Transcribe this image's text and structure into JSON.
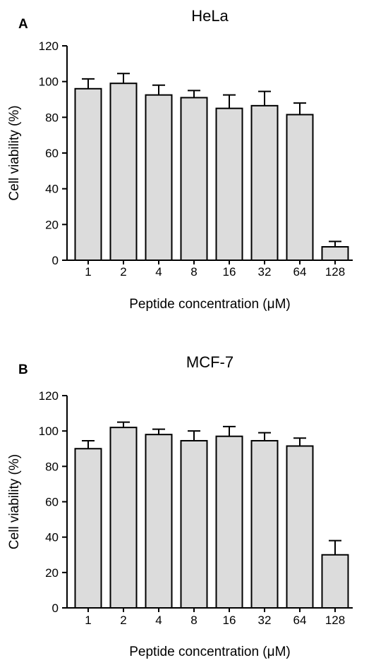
{
  "chart_data": [
    {
      "type": "bar",
      "panel_label": "A",
      "title": "HeLa",
      "xlabel": "Peptide concentration (μM)",
      "ylabel": "Cell viability (%)",
      "categories": [
        "1",
        "2",
        "4",
        "8",
        "16",
        "32",
        "64",
        "128"
      ],
      "values": [
        96,
        99,
        92.5,
        91,
        85,
        86.5,
        81.5,
        7.5
      ],
      "errors": [
        5.5,
        5.5,
        5.5,
        4,
        7.5,
        8,
        6.5,
        3
      ],
      "ylim": [
        0,
        120
      ],
      "yticks": [
        0,
        20,
        40,
        60,
        80,
        100,
        120
      ],
      "grid": false,
      "bar_color": "#dcdcdc"
    },
    {
      "type": "bar",
      "panel_label": "B",
      "title": "MCF-7",
      "xlabel": "Peptide concentration (μM)",
      "ylabel": "Cell viability (%)",
      "categories": [
        "1",
        "2",
        "4",
        "8",
        "16",
        "32",
        "64",
        "128"
      ],
      "values": [
        90,
        102,
        98,
        94.5,
        97,
        94.5,
        91.5,
        30
      ],
      "errors": [
        4.5,
        3,
        3,
        5.5,
        5.5,
        4.5,
        4.5,
        8
      ],
      "ylim": [
        0,
        120
      ],
      "yticks": [
        0,
        20,
        40,
        60,
        80,
        100,
        120
      ],
      "grid": false,
      "bar_color": "#dcdcdc"
    }
  ]
}
